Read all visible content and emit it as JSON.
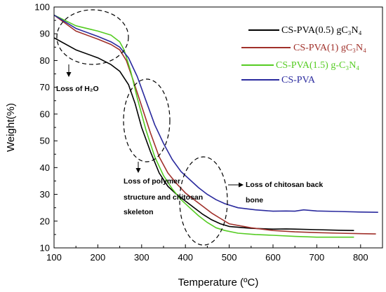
{
  "chart_data": {
    "type": "line",
    "xlabel": "Temperature (ºC)",
    "ylabel": "Weight(%)",
    "xlim": [
      100,
      850
    ],
    "ylim": [
      10,
      100
    ],
    "xticks": [
      "100",
      "200",
      "300",
      "400",
      "500",
      "600",
      "700",
      "800"
    ],
    "yticks": [
      "10",
      "20",
      "30",
      "40",
      "50",
      "60",
      "70",
      "80",
      "90",
      "100"
    ],
    "grid": false,
    "legend_position": "top-right",
    "series": [
      {
        "name": "CS-PVA(0.5) gC3N4",
        "color": "#000000",
        "x": [
          100,
          150,
          200,
          230,
          250,
          270,
          285,
          300,
          320,
          340,
          360,
          380,
          400,
          420,
          440,
          460,
          480,
          500,
          550,
          600,
          630,
          650,
          700,
          750,
          785
        ],
        "y": [
          88.5,
          84,
          81,
          78.5,
          76,
          71,
          64,
          55,
          46,
          38,
          33,
          30,
          27.5,
          25,
          22.5,
          20.5,
          19,
          18,
          17.3,
          17,
          17.1,
          17,
          16.8,
          16.6,
          16.5
        ]
      },
      {
        "name": "CS-PVA(1) gC3N4",
        "color": "#a0302a",
        "x": [
          100,
          150,
          200,
          230,
          250,
          265,
          280,
          300,
          320,
          340,
          360,
          380,
          400,
          420,
          440,
          460,
          480,
          500,
          550,
          600,
          650,
          700,
          750,
          800,
          835
        ],
        "y": [
          97,
          91,
          88,
          86,
          84,
          80,
          73,
          63,
          53,
          44,
          38,
          34,
          30.5,
          28,
          25.5,
          23,
          21,
          19,
          17.5,
          16.5,
          16,
          15.7,
          15.5,
          15.3,
          15.2
        ]
      },
      {
        "name": "CS-PVA(1.5) g-C3N4",
        "color": "#55cc22",
        "x": [
          100,
          150,
          200,
          230,
          250,
          260,
          275,
          290,
          310,
          330,
          350,
          370,
          390,
          410,
          430,
          450,
          470,
          490,
          520,
          560,
          600,
          650,
          700,
          750,
          785
        ],
        "y": [
          97,
          93,
          91,
          89.5,
          87,
          84,
          76,
          66,
          54,
          44,
          37,
          32,
          28,
          25,
          22,
          19.5,
          17.5,
          16.5,
          15.5,
          15,
          14.7,
          14.3,
          14,
          14,
          14
        ]
      },
      {
        "name": "CS-PVA",
        "color": "#2a2a9e",
        "x": [
          100,
          150,
          200,
          230,
          250,
          270,
          290,
          310,
          330,
          350,
          370,
          390,
          410,
          430,
          450,
          470,
          490,
          520,
          560,
          600,
          630,
          650,
          670,
          700,
          750,
          800,
          840
        ],
        "y": [
          97,
          92,
          89,
          87,
          85,
          81,
          74,
          65,
          56,
          49,
          43,
          38.5,
          35.5,
          32.5,
          30,
          28,
          26.5,
          25,
          24.2,
          23.7,
          23.8,
          23.7,
          24.2,
          23.8,
          23.6,
          23.4,
          23.3
        ]
      }
    ],
    "annotations": [
      {
        "name": "h2o",
        "text": "Loss of H₂O"
      },
      {
        "name": "polymer-1",
        "text": "Loss of polymer"
      },
      {
        "name": "polymer-2",
        "text": "structure and chitosan"
      },
      {
        "name": "polymer-3",
        "text": "skeleton"
      },
      {
        "name": "backbone-1",
        "text": "Loss of chitosan back"
      },
      {
        "name": "backbone-2",
        "text": "bone"
      }
    ]
  }
}
